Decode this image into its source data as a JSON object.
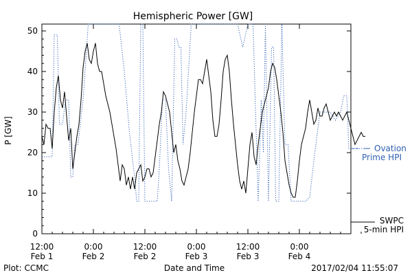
{
  "chart_data": {
    "type": "line",
    "title": "Hemispheric Power [GW]",
    "xlabel": "Date and Time",
    "ylabel": "P [GW]",
    "ylim": [
      0,
      52
    ],
    "xlim": [
      0,
      31.5
    ],
    "x_unit": "hours since Feb 1 12:00",
    "y_ticks": [
      0,
      10,
      20,
      30,
      40,
      50
    ],
    "x_ticks": [
      {
        "x": 0,
        "time": "12:00",
        "date": "Feb 1"
      },
      {
        "x": 5,
        "time": "0:00",
        "date": "Feb 2"
      },
      {
        "x": 10,
        "time": "12:00",
        "date": "Feb 2"
      },
      {
        "x": 15,
        "time": "0:00",
        "date": "Feb 3"
      },
      {
        "x": 20,
        "time": "12:00",
        "date": "Feb 3"
      },
      {
        "x": 25,
        "time": "0:00",
        "date": "Feb 4"
      }
    ],
    "series": [
      {
        "name": "Ovation Prime HPI",
        "style": "dotted",
        "color": "#2d5fb2",
        "label_lines": [
          "Ovation",
          "Prime HPI"
        ],
        "x": [
          0,
          0.4,
          0.8,
          1.0,
          1.2,
          1.5,
          1.7,
          2.0,
          2.3,
          2.6,
          2.8,
          3.0,
          3.2,
          3.5,
          4.0,
          4.5,
          5.0,
          5.5,
          6.0,
          6.5,
          7.0,
          7.5,
          8.0,
          8.5,
          9.0,
          9.2,
          9.4,
          9.6,
          9.8,
          10.0,
          10.5,
          11.0,
          11.2,
          11.4,
          11.7,
          12.0,
          12.3,
          12.6,
          12.9,
          13.1,
          13.3,
          13.5,
          13.7,
          14.0,
          14.5,
          15.0,
          15.5,
          16.0,
          16.5,
          17.0,
          17.5,
          18.0,
          18.5,
          19.0,
          19.5,
          20.0,
          20.5,
          21.0,
          21.3,
          21.5,
          21.7,
          22.0,
          22.3,
          22.5,
          22.7,
          23.0,
          23.3,
          23.6,
          23.9,
          24.2,
          24.5,
          24.8,
          25.2,
          25.6,
          26.0,
          26.5,
          27.0,
          27.5,
          28.0,
          28.5,
          29.0,
          29.3,
          29.6,
          29.8,
          30.0,
          30.5,
          31.0,
          31.3
        ],
        "y": [
          19,
          19,
          19,
          19,
          49,
          49,
          27,
          27,
          33,
          33,
          14,
          14,
          22,
          22,
          33,
          52,
          52,
          52,
          52,
          52,
          52,
          52,
          40,
          25,
          14,
          8,
          8,
          52,
          52,
          8,
          8,
          8,
          8,
          16,
          33,
          33,
          16,
          8,
          48,
          48,
          46,
          46,
          22,
          30,
          52,
          52,
          52,
          52,
          52,
          52,
          52,
          52,
          52,
          52,
          46,
          52,
          52,
          8,
          33,
          20,
          52,
          8,
          46,
          46,
          8,
          8,
          52,
          22,
          22,
          8,
          8,
          8,
          8,
          8,
          9,
          20,
          30,
          30,
          30,
          28,
          30,
          34,
          34,
          21,
          21,
          21,
          21,
          21
        ]
      },
      {
        "name": "SWPC 5-min HPI",
        "style": "solid",
        "color": "#000000",
        "label_lines": [
          "SWPC",
          "5-min HPI"
        ],
        "x": [
          0,
          0.2,
          0.4,
          0.6,
          0.8,
          1.0,
          1.2,
          1.4,
          1.6,
          1.8,
          2.0,
          2.2,
          2.4,
          2.6,
          2.8,
          3.0,
          3.2,
          3.4,
          3.6,
          3.8,
          4.0,
          4.2,
          4.4,
          4.6,
          4.8,
          5.0,
          5.2,
          5.4,
          5.6,
          5.8,
          6.0,
          6.2,
          6.4,
          6.6,
          6.8,
          7.0,
          7.2,
          7.4,
          7.6,
          7.8,
          8.0,
          8.2,
          8.4,
          8.6,
          8.8,
          9.0,
          9.2,
          9.4,
          9.6,
          9.8,
          10.0,
          10.2,
          10.4,
          10.6,
          10.8,
          11.0,
          11.2,
          11.4,
          11.6,
          11.8,
          12.0,
          12.2,
          12.4,
          12.6,
          12.8,
          13.0,
          13.2,
          13.4,
          13.6,
          13.8,
          14.0,
          14.2,
          14.4,
          14.6,
          14.8,
          15.0,
          15.2,
          15.4,
          15.6,
          15.8,
          16.0,
          16.2,
          16.4,
          16.6,
          16.8,
          17.0,
          17.2,
          17.4,
          17.6,
          17.8,
          18.0,
          18.2,
          18.4,
          18.6,
          18.8,
          19.0,
          19.2,
          19.4,
          19.6,
          19.8,
          20.0,
          20.2,
          20.4,
          20.6,
          20.8,
          21.0,
          21.2,
          21.4,
          21.6,
          21.8,
          22.0,
          22.2,
          22.4,
          22.6,
          22.8,
          23.0,
          23.2,
          23.4,
          23.6,
          23.8,
          24.0,
          24.2,
          24.4,
          24.6,
          24.8,
          25.0,
          25.2,
          25.4,
          25.6,
          25.8,
          26.0,
          26.2,
          26.4,
          26.6,
          26.8,
          27.0,
          27.2,
          27.4,
          27.6,
          27.8,
          28.0,
          28.2,
          28.4,
          28.6,
          28.8,
          29.0,
          29.2,
          29.4,
          29.6,
          29.8,
          30.0,
          30.2,
          30.4,
          30.6,
          30.8,
          31.0,
          31.2,
          31.4
        ],
        "y": [
          24,
          22,
          27,
          26,
          26,
          21,
          30,
          36,
          39,
          33,
          31,
          35,
          29,
          23,
          26,
          16,
          20,
          24,
          27,
          33,
          41,
          45,
          47,
          43,
          42,
          45,
          47,
          42,
          40,
          40,
          37,
          34,
          32,
          30,
          27,
          24,
          21,
          17,
          13,
          17,
          16,
          12,
          14,
          11,
          14,
          11,
          15,
          16,
          17,
          13,
          14,
          16,
          16,
          14,
          15,
          19,
          23,
          27,
          30,
          35,
          34,
          32,
          30,
          25,
          20,
          22,
          18,
          16,
          13,
          12,
          14,
          16,
          20,
          25,
          30,
          34,
          38,
          38,
          37,
          40,
          43,
          39,
          35,
          28,
          24,
          24,
          27,
          33,
          40,
          43,
          44,
          40,
          33,
          27,
          22,
          17,
          13,
          11,
          13,
          10,
          16,
          22,
          25,
          19,
          17,
          22,
          26,
          30,
          32,
          34,
          36,
          40,
          42,
          41,
          38,
          34,
          30,
          25,
          18,
          15,
          12,
          10,
          9,
          9,
          13,
          18,
          22,
          24,
          26,
          30,
          33,
          30,
          27,
          28,
          31,
          29,
          29,
          31,
          32,
          30,
          28,
          29,
          30,
          29,
          30,
          29,
          28,
          29,
          30,
          28,
          26,
          24,
          22,
          23,
          24,
          25,
          24,
          24
        ]
      }
    ]
  },
  "footer": {
    "left": "Plot: CCMC",
    "right": "2017/02/04 11:55:07"
  }
}
